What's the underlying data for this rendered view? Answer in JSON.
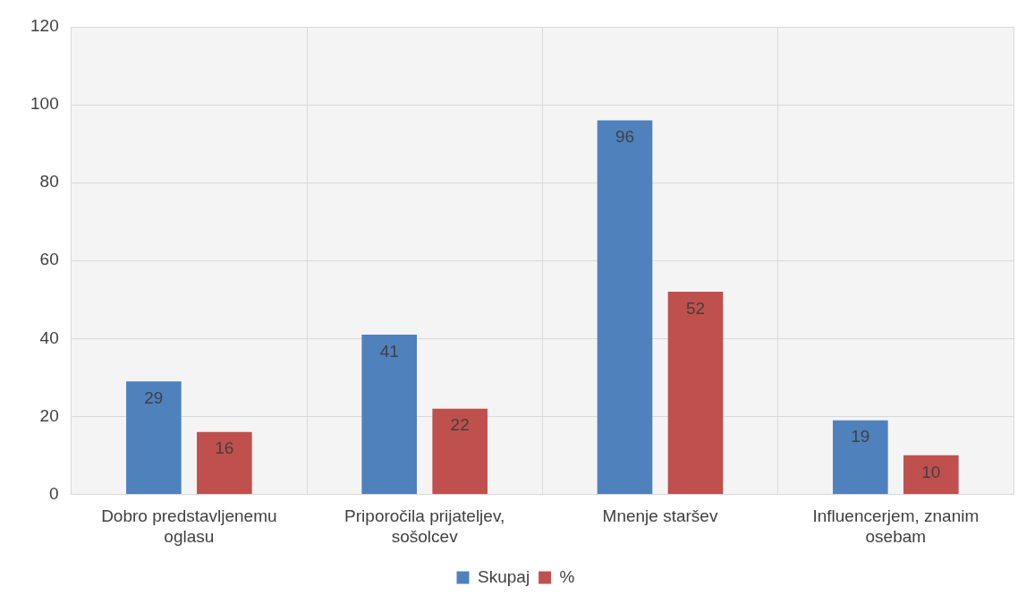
{
  "chart_data": {
    "type": "bar",
    "categories": [
      "Dobro predstavljenemu oglasu",
      "Priporočila prijateljev, sošolcev",
      "Mnenje staršev",
      "Influencerjem, znanim osebam"
    ],
    "series": [
      {
        "name": "Skupaj",
        "color": "#4f81bd",
        "values": [
          29,
          41,
          96,
          19
        ]
      },
      {
        "name": "%",
        "color": "#c0504d",
        "values": [
          16,
          22,
          52,
          10
        ]
      }
    ],
    "ylim": [
      0,
      120
    ],
    "yticks": [
      0,
      20,
      40,
      60,
      80,
      100,
      120
    ],
    "grid": true,
    "legend": "bottom",
    "data_labels": true
  }
}
